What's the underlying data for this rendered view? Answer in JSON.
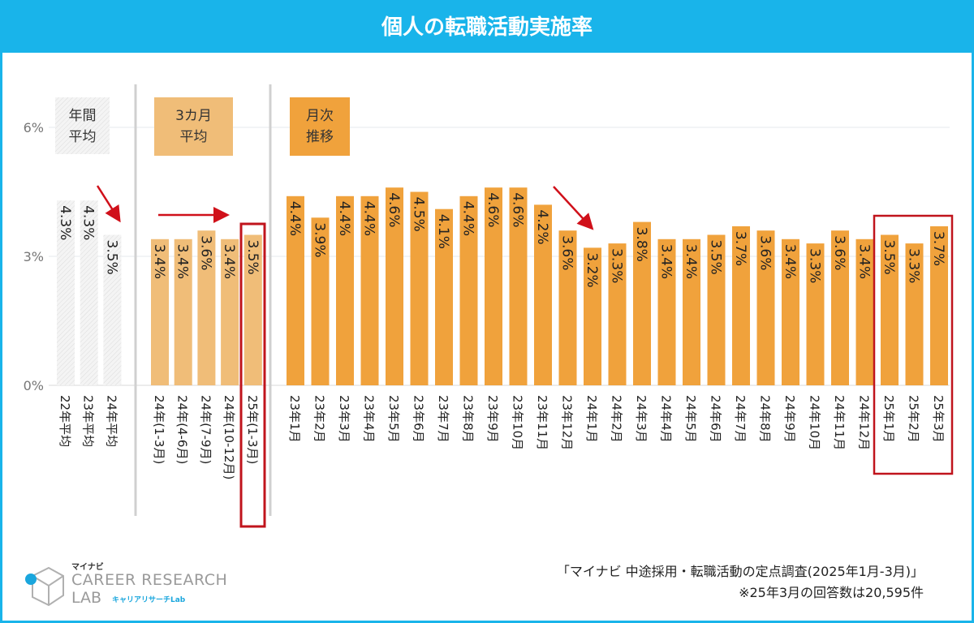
{
  "header": {
    "title": "個人の転職活動実施率"
  },
  "colors": {
    "header": "#19b4ea",
    "annual": "#f2f2f2",
    "quarterly": "#f0bd78",
    "monthly": "#f0a23c",
    "highlight": "#c0141c",
    "arrow": "#d0101a"
  },
  "chart_data": {
    "type": "bar",
    "title": "個人の転職活動実施率",
    "ylabel": "",
    "ylim": [
      0,
      6.5
    ],
    "yticks": [
      "0%",
      "3%",
      "6%"
    ],
    "ytick_values": [
      0,
      3,
      6
    ],
    "grid": true,
    "groups": [
      {
        "name": "年間平均",
        "label_lines": [
          "年間",
          "平均"
        ],
        "categories": [
          "22年平均",
          "23年平均",
          "24年平均"
        ],
        "values": [
          4.3,
          4.3,
          3.5
        ],
        "labels": [
          "4.3%",
          "4.3%",
          "3.5%"
        ]
      },
      {
        "name": "3カ月平均",
        "label_lines": [
          "3カ月",
          "平均"
        ],
        "categories": [
          "24年(1-3月)",
          "24年(4-6月)",
          "24年(7-9月)",
          "24年(10-12月)",
          "25年(1-3月)"
        ],
        "values": [
          3.4,
          3.4,
          3.6,
          3.4,
          3.5
        ],
        "labels": [
          "3.4%",
          "3.4%",
          "3.6%",
          "3.4%",
          "3.5%"
        ]
      },
      {
        "name": "月次推移",
        "label_lines": [
          "月次",
          "推移"
        ],
        "categories": [
          "23年1月",
          "23年2月",
          "23年3月",
          "23年4月",
          "23年5月",
          "23年6月",
          "23年7月",
          "23年8月",
          "23年9月",
          "23年10月",
          "23年11月",
          "23年12月",
          "24年1月",
          "24年2月",
          "24年3月",
          "24年4月",
          "24年5月",
          "24年6月",
          "24年7月",
          "24年8月",
          "24年9月",
          "24年10月",
          "24年11月",
          "24年12月",
          "25年1月",
          "25年2月",
          "25年3月"
        ],
        "values": [
          4.4,
          3.9,
          4.4,
          4.4,
          4.6,
          4.5,
          4.1,
          4.4,
          4.6,
          4.6,
          4.2,
          3.6,
          3.2,
          3.3,
          3.8,
          3.4,
          3.4,
          3.5,
          3.7,
          3.6,
          3.4,
          3.3,
          3.6,
          3.4,
          3.5,
          3.3,
          3.7
        ],
        "labels": [
          "4.4%",
          "3.9%",
          "4.4%",
          "4.4%",
          "4.6%",
          "4.5%",
          "4.1%",
          "4.4%",
          "4.6%",
          "4.6%",
          "4.2%",
          "3.6%",
          "3.2%",
          "3.3%",
          "3.8%",
          "3.4%",
          "3.4%",
          "3.5%",
          "3.7%",
          "3.6%",
          "3.4%",
          "3.3%",
          "3.6%",
          "3.4%",
          "3.5%",
          "3.3%",
          "3.7%"
        ]
      }
    ],
    "annotations": [
      "annual decreasing arrow",
      "quarterly flat arrow",
      "monthly decreasing arrow",
      "highlight 25年(1-3月)",
      "highlight 25年1月-3月"
    ]
  },
  "footer": {
    "source": "「マイナビ 中途採用・転職活動の定点調査(2025年1月-3月)」",
    "note": "※25年3月の回答数は20,595件"
  },
  "logo": {
    "brand": "マイナビ",
    "line1": "CAREER RESEARCH",
    "line2": "LAB",
    "line3": "キャリアリサーチLab"
  }
}
